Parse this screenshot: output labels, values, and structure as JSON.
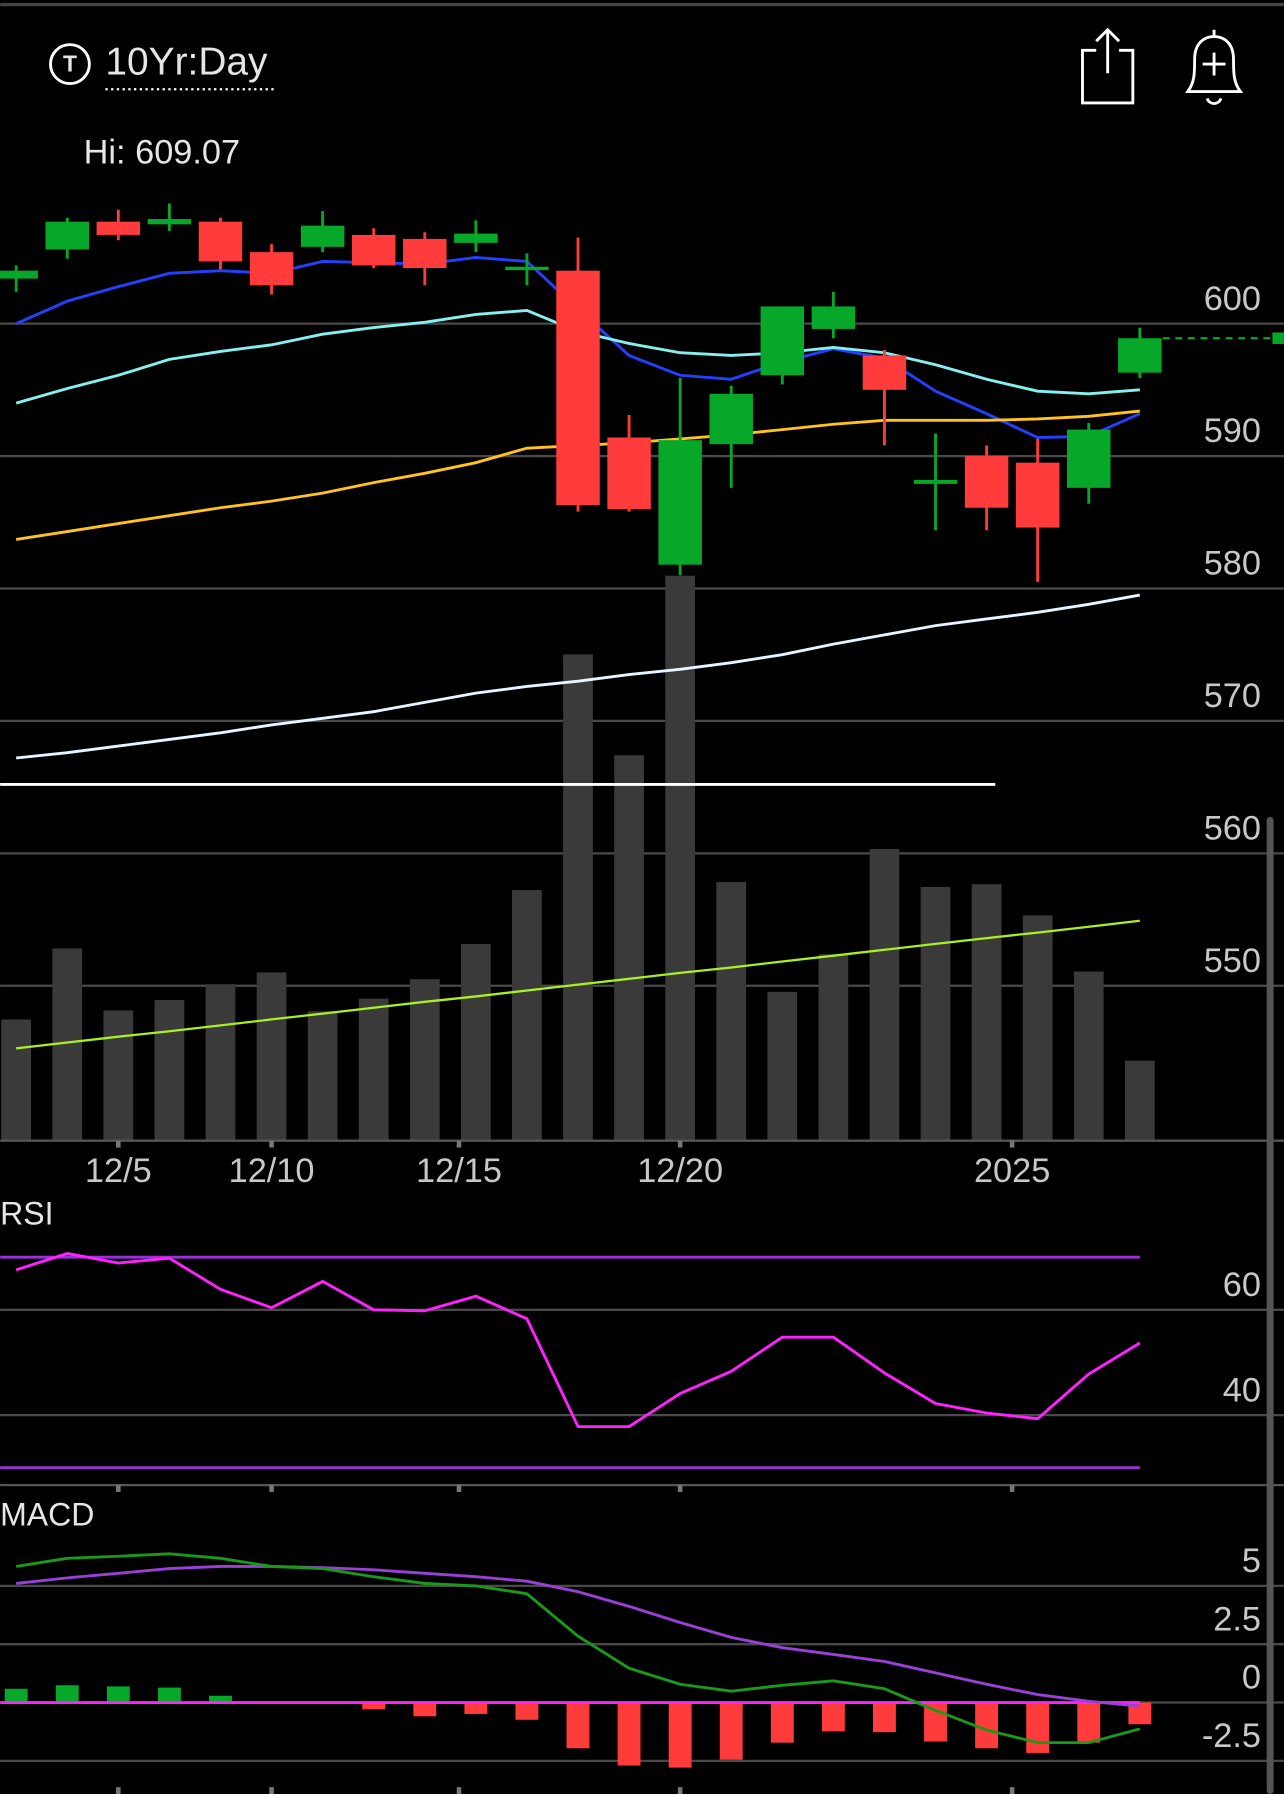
{
  "header": {
    "icon_letter": "T",
    "title": "10Yr:Day"
  },
  "chart_data": [
    {
      "type": "candlestick",
      "annotation": "Hi: 609.07",
      "categories": [
        null,
        null,
        null,
        null,
        null,
        null,
        null,
        null,
        null,
        null,
        null,
        null,
        null,
        null,
        null,
        null,
        null,
        null,
        null,
        null,
        null,
        null,
        null
      ],
      "open": [
        603.4,
        605.6,
        607.7,
        607.5,
        607.7,
        605.4,
        605.8,
        606.7,
        606.4,
        606.1,
        604.1,
        604.0,
        591.4,
        581.8,
        590.9,
        596.1,
        599.6,
        597.6,
        587.9,
        590.0,
        589.5,
        587.6,
        596.3
      ],
      "high": [
        604.4,
        608.0,
        608.6,
        609.07,
        608.0,
        606.0,
        608.5,
        607.2,
        606.9,
        607.8,
        605.3,
        606.5,
        593.1,
        595.9,
        595.3,
        601.3,
        602.4,
        598.0,
        591.7,
        590.8,
        591.3,
        592.5,
        599.7
      ],
      "low": [
        602.4,
        604.9,
        606.3,
        607.0,
        604.1,
        602.2,
        605.4,
        604.2,
        602.9,
        605.4,
        602.9,
        585.8,
        585.8,
        581.0,
        587.6,
        595.4,
        598.9,
        590.8,
        584.4,
        584.4,
        580.5,
        586.4,
        595.9
      ],
      "close": [
        604.0,
        607.7,
        606.7,
        607.9,
        604.7,
        602.9,
        607.4,
        604.4,
        604.2,
        606.8,
        604.3,
        586.3,
        586.0,
        591.2,
        594.7,
        601.3,
        601.3,
        595.0,
        588.2,
        586.1,
        584.6,
        592.0,
        598.9
      ],
      "up_color": "#07a82a",
      "down_color": "#ff3b3b",
      "lines": [
        {
          "color": "#2440ff",
          "values": [
            600.0,
            601.7,
            602.8,
            603.8,
            604.0,
            603.8,
            604.7,
            604.6,
            604.5,
            605.0,
            604.7,
            601.1,
            597.6,
            596.1,
            595.8,
            597.1,
            598.1,
            597.4,
            594.9,
            593.2,
            591.4,
            591.5,
            593.2
          ]
        },
        {
          "color": "#86f0f0",
          "values": [
            594.0,
            595.1,
            596.1,
            597.3,
            597.9,
            598.4,
            599.2,
            599.7,
            600.1,
            600.7,
            601.0,
            599.4,
            598.5,
            597.8,
            597.6,
            597.8,
            598.2,
            597.8,
            596.9,
            595.8,
            594.9,
            594.7,
            595.0
          ]
        },
        {
          "color": "#ffc21e",
          "values": [
            583.7,
            584.3,
            584.9,
            585.5,
            586.1,
            586.6,
            587.2,
            588.0,
            588.7,
            589.5,
            590.6,
            590.8,
            591.0,
            591.3,
            591.6,
            592.0,
            592.4,
            592.7,
            592.7,
            592.7,
            592.8,
            593.0,
            593.4
          ]
        },
        {
          "color": "#e4f6ff",
          "values": [
            567.2,
            567.6,
            568.1,
            568.6,
            569.1,
            569.7,
            570.2,
            570.7,
            571.4,
            572.1,
            572.6,
            573.0,
            573.5,
            573.9,
            574.4,
            575.0,
            575.8,
            576.5,
            577.2,
            577.7,
            578.2,
            578.8,
            579.5
          ]
        }
      ],
      "hline": {
        "value": 565.2,
        "x_end": 19.17,
        "color": "#ffffff"
      },
      "price_line_color": "#07a82a",
      "volume": {
        "values": [
          26.8,
          42.5,
          28.8,
          31.1,
          34.6,
          37.2,
          28.6,
          31.4,
          35.7,
          43.5,
          55.4,
          107.5,
          85.2,
          124.9,
          57.2,
          32.9,
          41.2,
          64.5,
          56.1,
          56.7,
          49.8,
          37.4,
          17.7
        ],
        "color": "#3a3a3a",
        "lim": [
          0,
          130
        ],
        "ma": [
          20.4,
          21.7,
          23.0,
          24.2,
          25.5,
          26.8,
          28.1,
          29.4,
          30.7,
          31.9,
          33.2,
          34.5,
          35.8,
          37.1,
          38.3,
          39.6,
          40.9,
          42.2,
          43.5,
          44.8,
          46.0,
          47.3,
          48.6
        ],
        "ma_color": "#a8f020"
      },
      "xlim": [
        -0.314,
        24.82
      ],
      "xticks": [
        {
          "value": 2,
          "label": "12/5"
        },
        {
          "value": 5,
          "label": "12/10"
        },
        {
          "value": 8.67,
          "label": "12/15"
        },
        {
          "value": 13,
          "label": "12/20"
        },
        {
          "value": 19.5,
          "label": "2025"
        }
      ],
      "ylim": [
        538.3,
        615.8
      ],
      "yticks": [
        550,
        560,
        570,
        580,
        590,
        600
      ],
      "grid": true
    },
    {
      "type": "line",
      "label": "RSI",
      "values": [
        67.6,
        70.7,
        68.9,
        69.8,
        63.9,
        60.4,
        65.4,
        60.0,
        59.8,
        62.6,
        58.3,
        37.8,
        37.8,
        44.1,
        48.3,
        54.8,
        54.8,
        48.0,
        42.2,
        40.4,
        39.3,
        47.8,
        53.7
      ],
      "color": "#ff22ff",
      "bands": [
        70,
        30
      ],
      "band_color": "#9a30d8",
      "ylim": [
        26.7,
        81.7
      ],
      "yticks": [
        40,
        60
      ],
      "grid": true
    },
    {
      "type": "macd",
      "label": "MACD",
      "macd": [
        5.83,
        6.18,
        6.27,
        6.37,
        6.18,
        5.83,
        5.74,
        5.39,
        5.1,
        5.0,
        4.66,
        2.84,
        1.47,
        0.78,
        0.49,
        0.74,
        0.93,
        0.59,
        -0.34,
        -1.18,
        -1.72,
        -1.72,
        -1.13
      ],
      "signal": [
        5.1,
        5.34,
        5.54,
        5.74,
        5.83,
        5.83,
        5.78,
        5.69,
        5.54,
        5.39,
        5.2,
        4.75,
        4.12,
        3.43,
        2.79,
        2.35,
        2.06,
        1.76,
        1.27,
        0.78,
        0.34,
        0.05,
        -0.15
      ],
      "histogram": [
        0.59,
        0.74,
        0.69,
        0.64,
        0.29,
        0,
        0,
        -0.29,
        -0.59,
        -0.49,
        -0.74,
        -1.96,
        -2.7,
        -2.79,
        -2.45,
        -1.72,
        -1.23,
        -1.27,
        -1.67,
        -1.96,
        -2.16,
        -1.72,
        -0.93
      ],
      "macd_color": "#1a9a1a",
      "signal_color": "#9a40d8",
      "up_color": "#07a82a",
      "down_color": "#ff3b3b",
      "zero_line_color": "#ff22ff",
      "ylim": [
        -3.92,
        8.73
      ],
      "yticks": [
        5,
        2.5,
        0,
        -2.5
      ],
      "grid": true
    }
  ]
}
